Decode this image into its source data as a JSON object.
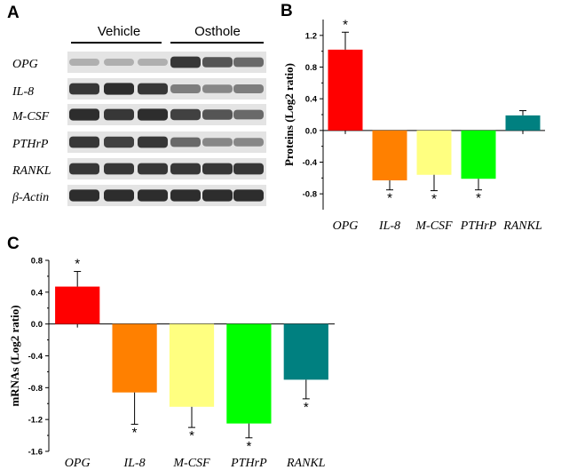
{
  "panels": {
    "a": "A",
    "b": "B",
    "c": "C"
  },
  "blot": {
    "groups": [
      "Vehicle",
      "Osthole"
    ],
    "rows": [
      "OPG",
      "IL-8",
      "M-CSF",
      "PTHrP",
      "RANKL",
      "β-Actin"
    ],
    "band_intensity": [
      [
        0.25,
        0.25,
        0.25,
        0.85,
        0.7,
        0.6
      ],
      [
        0.85,
        0.9,
        0.85,
        0.5,
        0.45,
        0.5
      ],
      [
        0.9,
        0.85,
        0.9,
        0.8,
        0.7,
        0.6
      ],
      [
        0.85,
        0.8,
        0.85,
        0.6,
        0.45,
        0.45
      ],
      [
        0.85,
        0.85,
        0.85,
        0.85,
        0.85,
        0.85
      ],
      [
        0.9,
        0.9,
        0.9,
        0.9,
        0.9,
        0.9
      ]
    ]
  },
  "chart_data": [
    {
      "type": "bar",
      "id": "B",
      "title": "",
      "xlabel": "",
      "ylabel": "Proteins (Log2 ratio)",
      "categories": [
        "OPG",
        "IL-8",
        "M-CSF",
        "PTHrP",
        "RANKL"
      ],
      "values": [
        1.02,
        -0.63,
        -0.56,
        -0.61,
        0.19
      ],
      "errors": [
        0.22,
        0.12,
        0.2,
        0.14,
        0.06
      ],
      "significant": [
        true,
        true,
        true,
        true,
        false
      ],
      "colors": [
        "#ff0000",
        "#ff8000",
        "#ffff80",
        "#00ff00",
        "#008080"
      ],
      "ylim": [
        -1.0,
        1.4
      ],
      "yticks": [
        -0.8,
        -0.4,
        0.0,
        0.4,
        0.8,
        1.2
      ],
      "ytick_labels": [
        "-0.8",
        "-0.4",
        "0.0",
        "0.4",
        "0.8",
        "1.2"
      ],
      "star_symbol": "*"
    },
    {
      "type": "bar",
      "id": "C",
      "title": "",
      "xlabel": "",
      "ylabel": "mRNAs (Log2 ratio)",
      "categories": [
        "OPG",
        "IL-8",
        "M-CSF",
        "PTHrP",
        "RANKL"
      ],
      "values": [
        0.47,
        -0.86,
        -1.04,
        -1.25,
        -0.7
      ],
      "errors": [
        0.19,
        0.4,
        0.26,
        0.18,
        0.24
      ],
      "significant": [
        true,
        true,
        true,
        true,
        true
      ],
      "colors": [
        "#ff0000",
        "#ff8000",
        "#ffff80",
        "#00ff00",
        "#008080"
      ],
      "ylim": [
        -1.6,
        0.8
      ],
      "yticks": [
        -1.6,
        -1.2,
        -0.8,
        -0.4,
        0.0,
        0.4,
        0.8
      ],
      "ytick_labels": [
        "-1.6",
        "-1.2",
        "-0.8",
        "-0.4",
        "0.0",
        "0.4",
        "0.8"
      ],
      "star_symbol": "*"
    }
  ]
}
